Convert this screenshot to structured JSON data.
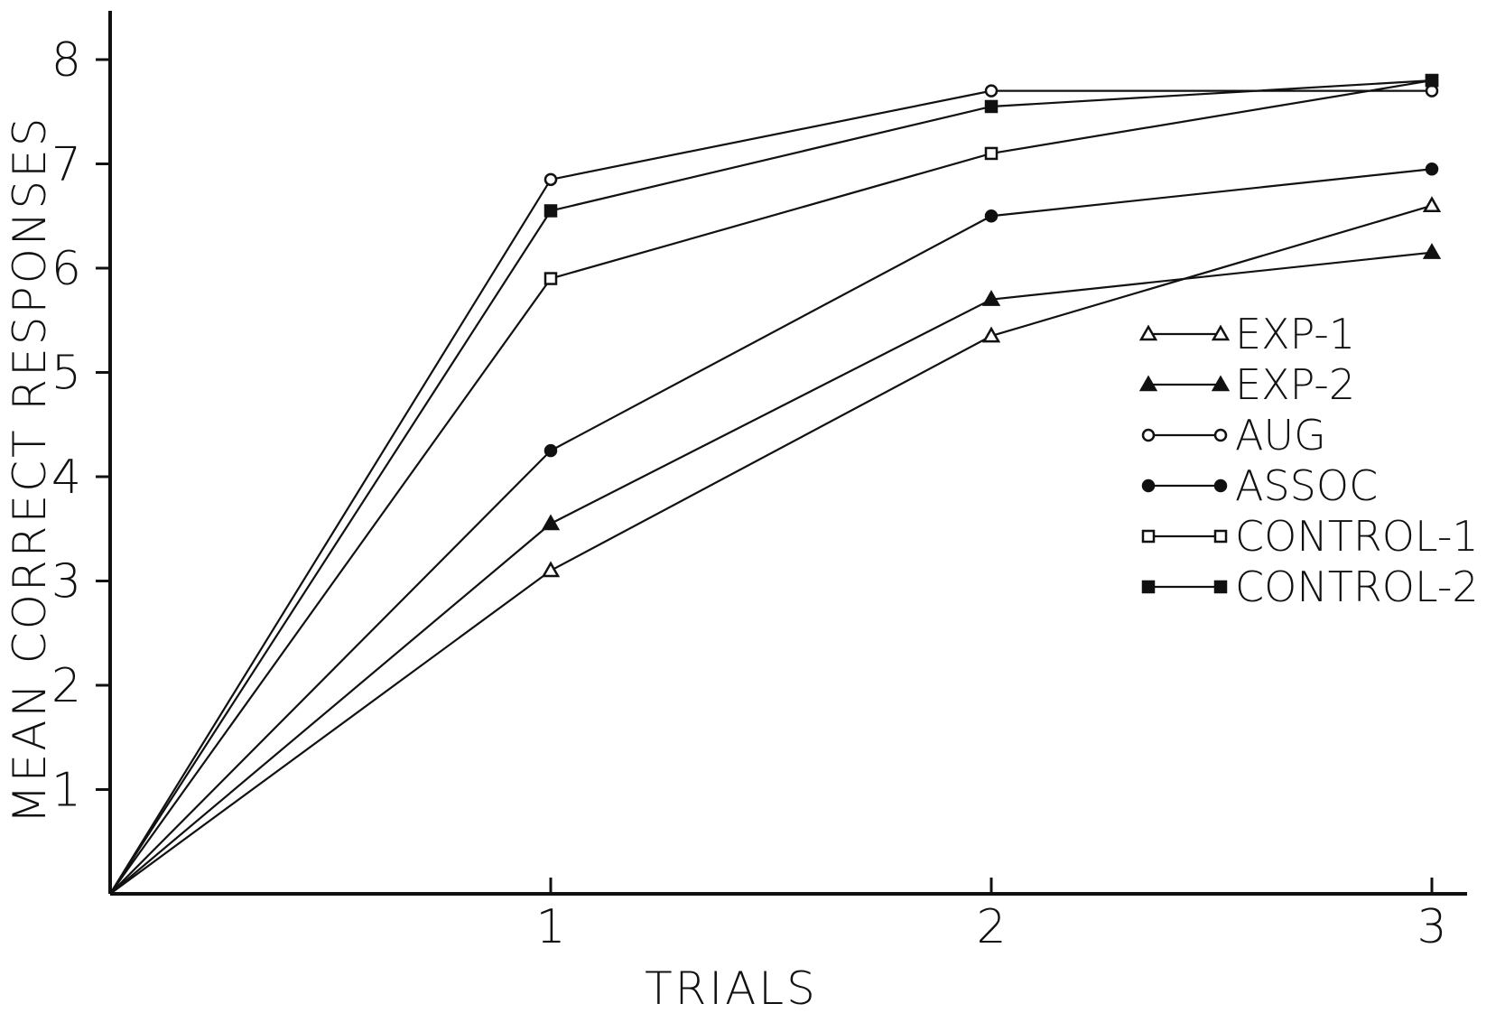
{
  "chart_data": {
    "type": "line",
    "title": "",
    "xlabel": "TRIALS",
    "ylabel": "MEAN CORRECT RESPONSES",
    "xlim": [
      0,
      3
    ],
    "ylim": [
      0,
      8
    ],
    "x_ticks": [
      "1",
      "2",
      "3"
    ],
    "y_ticks": [
      "1",
      "2",
      "3",
      "4",
      "5",
      "6",
      "7",
      "8"
    ],
    "x": [
      0,
      1,
      2,
      3
    ],
    "grid": false,
    "legend_position": "right",
    "series": [
      {
        "name": "EXP-1",
        "marker": "open-triangle",
        "values": [
          0,
          3.1,
          5.35,
          6.6
        ]
      },
      {
        "name": "EXP-2",
        "marker": "filled-triangle",
        "values": [
          0,
          3.55,
          5.7,
          6.15
        ]
      },
      {
        "name": "AUG",
        "marker": "open-circle",
        "values": [
          0,
          6.85,
          7.7,
          7.7
        ]
      },
      {
        "name": "ASSOC",
        "marker": "filled-circle",
        "values": [
          0,
          4.25,
          6.5,
          6.95
        ]
      },
      {
        "name": "CONTROL-1",
        "marker": "open-square",
        "values": [
          0,
          5.9,
          7.1,
          7.8
        ]
      },
      {
        "name": "CONTROL-2",
        "marker": "filled-square",
        "values": [
          0,
          6.55,
          7.55,
          7.8
        ]
      }
    ]
  }
}
